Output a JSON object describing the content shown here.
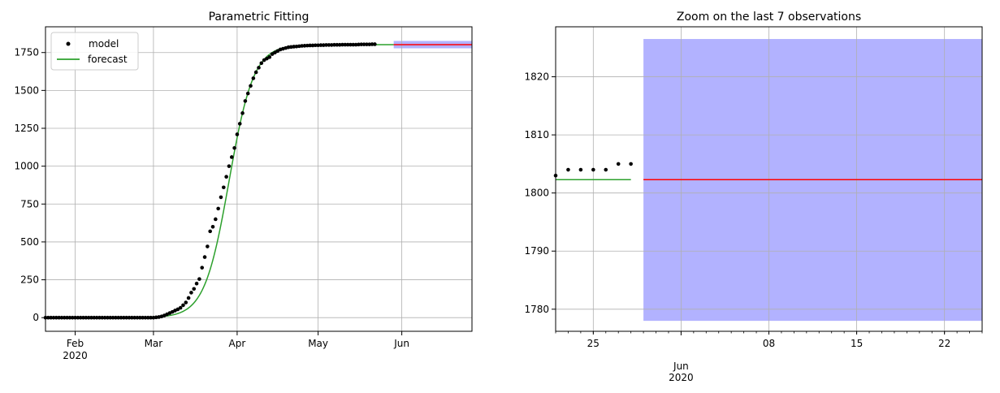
{
  "colors": {
    "model": "#000000",
    "forecast": "#2ca02c",
    "prediction": "#ff0000",
    "interval": "#0000ff",
    "grid": "#b0b0b0",
    "axes": "#000000"
  },
  "chart_data": [
    {
      "type": "line",
      "title": "Parametric Fitting",
      "xlabel": "",
      "ylabel": "",
      "x_axis_type": "date",
      "xlim": [
        "2020-01-21",
        "2020-06-27"
      ],
      "ylim": [
        -90,
        1920
      ],
      "grid": true,
      "legend": {
        "placement": "top-left",
        "entries": [
          "model",
          "forecast"
        ]
      },
      "x_ticks": [
        {
          "date": "2020-02-01",
          "label": "Feb",
          "sublabel": "2020"
        },
        {
          "date": "2020-03-01",
          "label": "Mar",
          "sublabel": ""
        },
        {
          "date": "2020-04-01",
          "label": "Apr",
          "sublabel": ""
        },
        {
          "date": "2020-05-01",
          "label": "May",
          "sublabel": ""
        },
        {
          "date": "2020-06-01",
          "label": "Jun",
          "sublabel": ""
        }
      ],
      "y_ticks": [
        0,
        250,
        500,
        750,
        1000,
        1250,
        1500,
        1750
      ],
      "series": [
        {
          "name": "model",
          "kind": "scatter",
          "x_start": "2020-01-21",
          "x_step_days": 1,
          "values": [
            0,
            0,
            0,
            0,
            0,
            0,
            0,
            0,
            0,
            0,
            0,
            0,
            0,
            0,
            0,
            0,
            0,
            0,
            0,
            0,
            0,
            0,
            0,
            0,
            0,
            0,
            0,
            0,
            0,
            0,
            0,
            0,
            0,
            0,
            0,
            0,
            0,
            0,
            0,
            0,
            0,
            2,
            4,
            8,
            14,
            22,
            30,
            38,
            47,
            55,
            65,
            82,
            100,
            130,
            165,
            190,
            225,
            255,
            330,
            400,
            470,
            570,
            600,
            650,
            720,
            795,
            860,
            930,
            1000,
            1060,
            1120,
            1210,
            1280,
            1350,
            1430,
            1480,
            1530,
            1580,
            1620,
            1650,
            1680,
            1700,
            1710,
            1720,
            1740,
            1750,
            1760,
            1770,
            1775,
            1780,
            1785,
            1787,
            1789,
            1790,
            1792,
            1794,
            1795,
            1796,
            1797,
            1797,
            1798,
            1798,
            1799,
            1799,
            1800,
            1800,
            1800,
            1801,
            1801,
            1801,
            1802,
            1802,
            1802,
            1802,
            1802,
            1802,
            1803,
            1804,
            1804,
            1804,
            1804,
            1805,
            1805
          ]
        },
        {
          "name": "forecast",
          "kind": "line",
          "model": "logistic",
          "x_start": "2020-01-21",
          "x_end": "2020-05-29",
          "K": 1802.3,
          "midpoint": "2020-03-29",
          "rate_per_day": 0.22
        }
      ],
      "prediction": {
        "x_start": "2020-05-29",
        "x_end": "2020-06-27",
        "value": 1802.3
      },
      "interval": {
        "x_start": "2020-05-29",
        "x_end": "2020-06-27",
        "low": 1778,
        "high": 1826.5
      }
    },
    {
      "type": "line",
      "title": "Zoom on the last 7 observations",
      "xlabel": "",
      "ylabel": "",
      "x_axis_type": "date",
      "xlim": [
        "2020-05-22",
        "2020-06-25"
      ],
      "ylim": [
        1776.2,
        1828.6
      ],
      "grid": true,
      "x_ticks": [
        {
          "date": "2020-05-25",
          "label": "25",
          "sublabel": "",
          "major": false
        },
        {
          "date": "2020-06-01",
          "label": "Jun",
          "sublabel": "2020",
          "major": true
        },
        {
          "date": "2020-06-08",
          "label": "08",
          "sublabel": "",
          "major": false
        },
        {
          "date": "2020-06-15",
          "label": "15",
          "sublabel": "",
          "major": false
        },
        {
          "date": "2020-06-22",
          "label": "22",
          "sublabel": "",
          "major": false
        }
      ],
      "y_ticks": [
        1780,
        1790,
        1800,
        1810,
        1820
      ],
      "series": [
        {
          "name": "model",
          "kind": "scatter",
          "x": [
            "2020-05-22",
            "2020-05-23",
            "2020-05-24",
            "2020-05-25",
            "2020-05-26",
            "2020-05-27",
            "2020-05-28"
          ],
          "values": [
            1803,
            1804,
            1804,
            1804,
            1804,
            1805,
            1805
          ]
        },
        {
          "name": "forecast",
          "kind": "line",
          "x": [
            "2020-05-22",
            "2020-05-28"
          ],
          "values": [
            1802.3,
            1802.3
          ]
        }
      ],
      "prediction": {
        "x_start": "2020-05-29",
        "x_end": "2020-06-25",
        "value": 1802.3
      },
      "interval": {
        "x_start": "2020-05-29",
        "x_end": "2020-06-25",
        "low": 1778,
        "high": 1826.5
      }
    }
  ]
}
